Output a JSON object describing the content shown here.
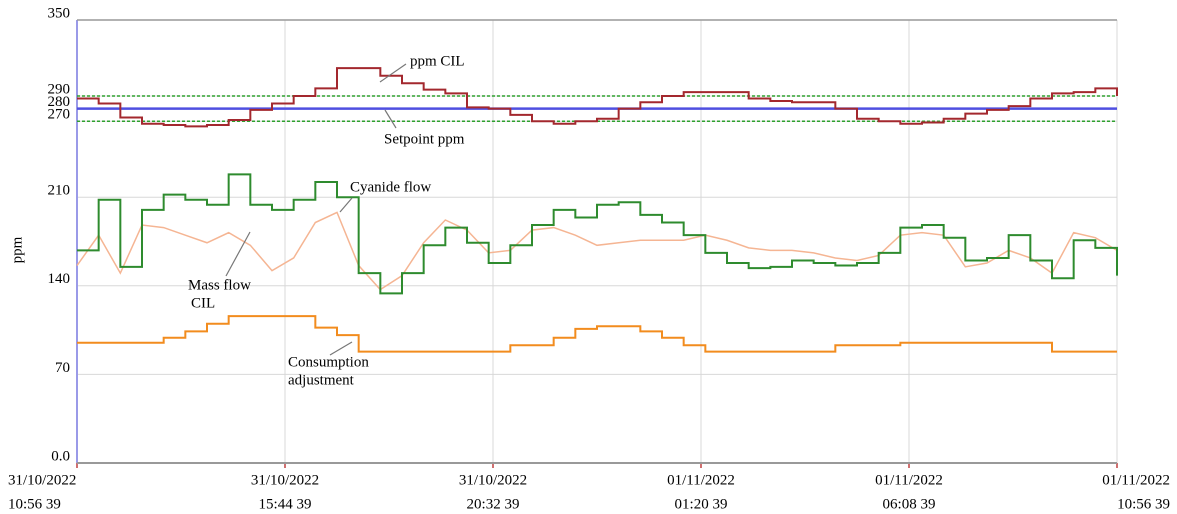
{
  "chart_data": {
    "type": "line",
    "ylabel": "ppm",
    "x": [
      0,
      0.5,
      1,
      1.5,
      2,
      2.5,
      3,
      3.5,
      4,
      4.5,
      5,
      5.5,
      6,
      6.5,
      7,
      7.5,
      8,
      8.5,
      9,
      9.5,
      10,
      10.5,
      11,
      11.5,
      12,
      12.5,
      13,
      13.5,
      14,
      14.5,
      15,
      15.5,
      16,
      16.5,
      17,
      17.5,
      18,
      18.5,
      19,
      19.5,
      20,
      20.5,
      21,
      21.5,
      22,
      22.5,
      23,
      23.5,
      24
    ],
    "xlim": [
      0,
      24
    ],
    "xticks": [
      {
        "value": 0,
        "label": [
          "31/10/2022",
          "10:56 39"
        ]
      },
      {
        "value": 4.8,
        "label": [
          "31/10/2022",
          "15:44 39"
        ]
      },
      {
        "value": 9.6,
        "label": [
          "31/10/2022",
          "20:32 39"
        ]
      },
      {
        "value": 14.4,
        "label": [
          "01/11/2022",
          "01:20 39"
        ]
      },
      {
        "value": 19.2,
        "label": [
          "01/11/2022",
          "06:08 39"
        ]
      },
      {
        "value": 24,
        "label": [
          "01/11/2022",
          "10:56 39"
        ]
      }
    ],
    "ylim": [
      0,
      350
    ],
    "yticks": [
      {
        "value": 0,
        "label": "0.0"
      },
      70,
      140,
      210,
      270,
      280,
      290,
      350
    ],
    "grid": true,
    "reference_lines": [
      {
        "value": 290,
        "color": "#2ea02e",
        "dashed": true
      },
      {
        "value": 270,
        "color": "#2ea02e",
        "dashed": true
      },
      {
        "value": 280,
        "color": "#4f4fe0",
        "dashed": false
      }
    ],
    "series": [
      {
        "color": "#a3282e",
        "step": true,
        "values": [
          288,
          284,
          273,
          268,
          267,
          266,
          267,
          271,
          279,
          284,
          290,
          296,
          312,
          312,
          306,
          300,
          295,
          292,
          281,
          280,
          275,
          270,
          268,
          270,
          272,
          280,
          285,
          290,
          293,
          293,
          293,
          288,
          286,
          285,
          285,
          280,
          272,
          270,
          268,
          269,
          272,
          276,
          279,
          282,
          288,
          292,
          293,
          296,
          290
        ]
      },
      {
        "color": "#2e8b2e",
        "step": true,
        "values": [
          168,
          208,
          155,
          200,
          212,
          208,
          204,
          228,
          204,
          200,
          208,
          222,
          210,
          150,
          134,
          150,
          172,
          186,
          174,
          158,
          172,
          188,
          200,
          194,
          204,
          206,
          196,
          190,
          180,
          166,
          158,
          154,
          155,
          160,
          158,
          156,
          158,
          166,
          186,
          188,
          178,
          160,
          162,
          180,
          160,
          146,
          176,
          170,
          148
        ]
      },
      {
        "color": "#f5b593",
        "step": false,
        "values": [
          156,
          180,
          150,
          188,
          186,
          180,
          174,
          182,
          172,
          152,
          162,
          190,
          198,
          156,
          137,
          148,
          174,
          192,
          184,
          166,
          168,
          184,
          186,
          180,
          172,
          174,
          176,
          176,
          176,
          180,
          176,
          170,
          168,
          168,
          166,
          162,
          160,
          164,
          180,
          182,
          180,
          155,
          158,
          168,
          162,
          150,
          182,
          178,
          168
        ]
      },
      {
        "color": "#f28c1e",
        "step": true,
        "values": [
          95,
          95,
          95,
          95,
          99,
          104,
          110,
          116,
          116,
          116,
          116,
          107,
          101,
          88,
          88,
          88,
          88,
          88,
          88,
          88,
          93,
          93,
          99,
          106,
          108,
          108,
          104,
          99,
          93,
          88,
          88,
          88,
          88,
          88,
          88,
          93,
          93,
          93,
          95,
          95,
          95,
          95,
          95,
          95,
          95,
          88,
          88,
          88,
          88
        ]
      }
    ],
    "annotations": [
      {
        "lines": [
          "ppm CIL"
        ]
      },
      {
        "lines": [
          "Setpoint ppm"
        ]
      },
      {
        "lines": [
          "Cyanide flow"
        ]
      },
      {
        "lines": [
          "Mass flow",
          "CIL"
        ]
      },
      {
        "lines": [
          "Consumption",
          "adjustment"
        ]
      }
    ]
  }
}
